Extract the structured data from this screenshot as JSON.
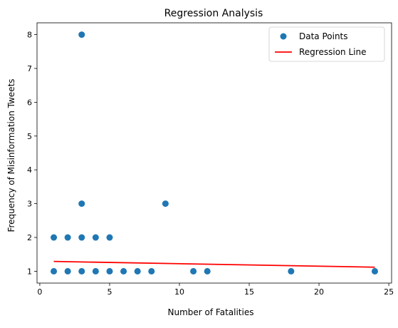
{
  "chart_data": {
    "type": "scatter",
    "title": "Regression Analysis",
    "xlabel": "Number of Fatalities",
    "ylabel": "Frequency of Misinformation Tweets",
    "xlim": [
      -0.2,
      25.2
    ],
    "ylim": [
      0.65,
      8.35
    ],
    "xticks": [
      0,
      5,
      10,
      15,
      20,
      25
    ],
    "yticks": [
      1,
      2,
      3,
      4,
      5,
      6,
      7,
      8
    ],
    "grid": false,
    "legend_position": "top-right",
    "series": [
      {
        "name": "Data Points",
        "kind": "scatter",
        "color": "#1f77b4",
        "points": [
          [
            1,
            1
          ],
          [
            1,
            2
          ],
          [
            2,
            1
          ],
          [
            2,
            2
          ],
          [
            3,
            1
          ],
          [
            3,
            2
          ],
          [
            3,
            3
          ],
          [
            3,
            8
          ],
          [
            4,
            1
          ],
          [
            4,
            2
          ],
          [
            5,
            1
          ],
          [
            5,
            2
          ],
          [
            6,
            1
          ],
          [
            7,
            1
          ],
          [
            8,
            1
          ],
          [
            9,
            3
          ],
          [
            11,
            1
          ],
          [
            12,
            1
          ],
          [
            18,
            1
          ],
          [
            24,
            1
          ]
        ]
      },
      {
        "name": "Regression Line",
        "kind": "line",
        "color": "#ff0000",
        "x": [
          1,
          24
        ],
        "y": [
          1.29,
          1.12
        ]
      }
    ]
  }
}
